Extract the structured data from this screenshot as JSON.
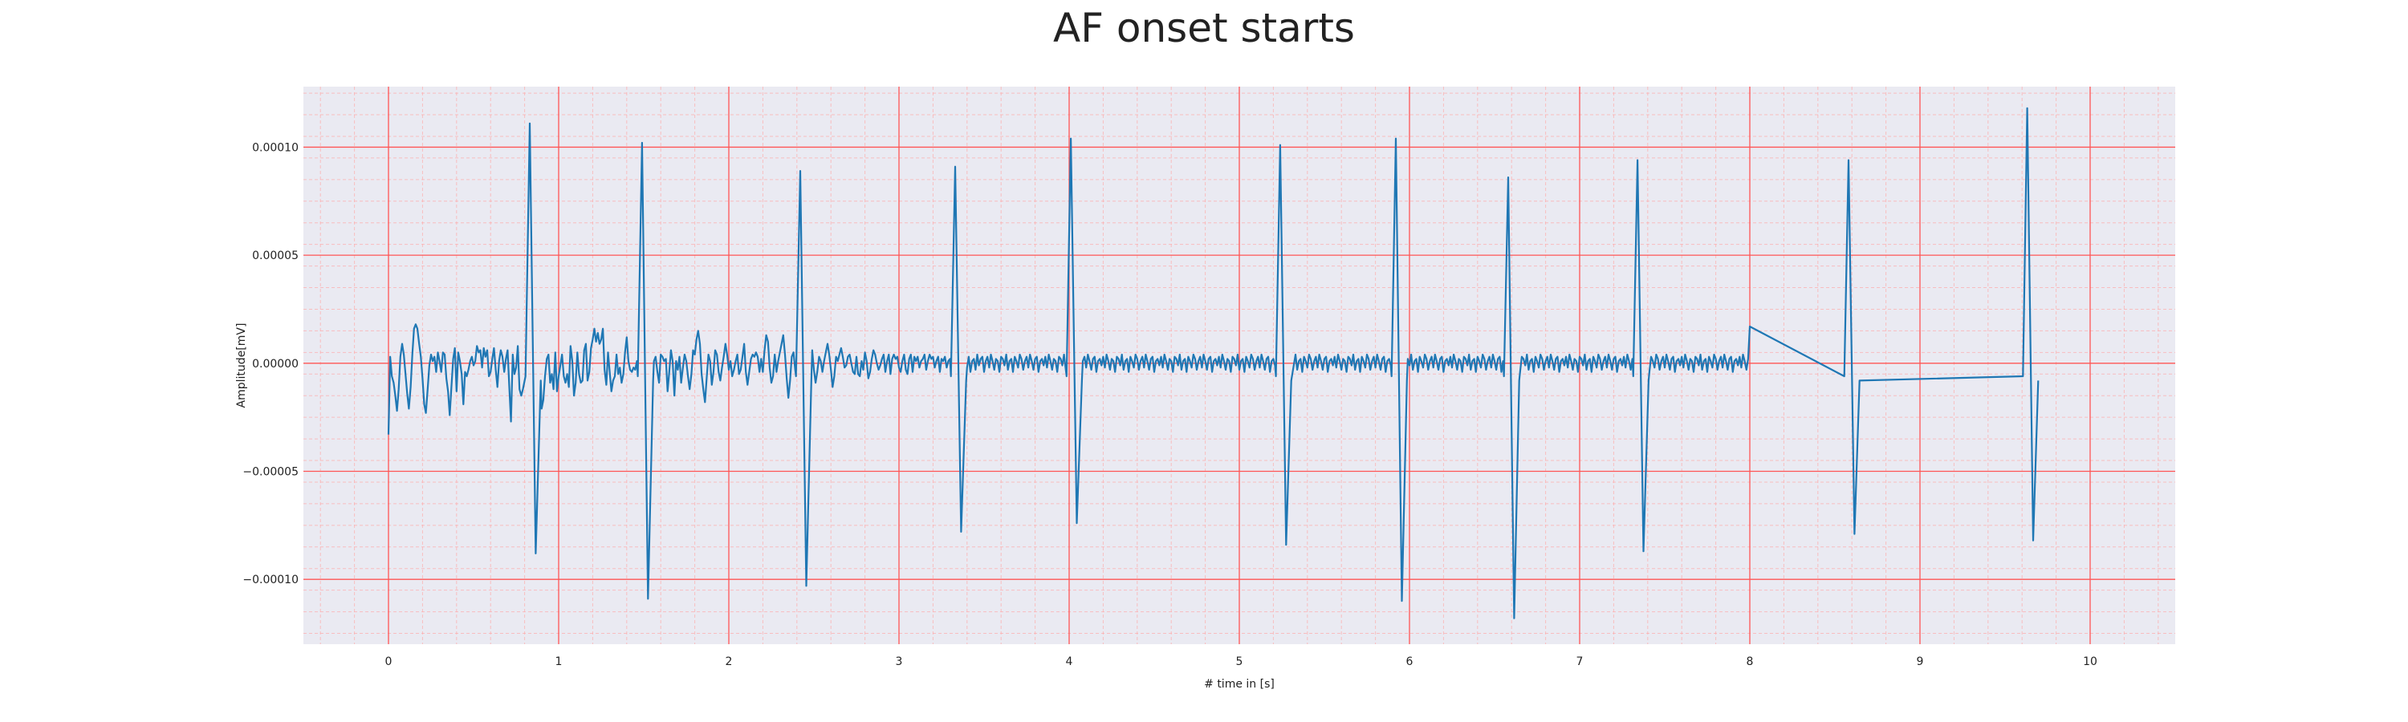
{
  "chart_data": {
    "type": "line",
    "title": "AF onset starts",
    "xlabel": "# time in [s]",
    "ylabel": "Amplitude[mV]",
    "xlim": [
      -0.5,
      10.5
    ],
    "ylim": [
      -0.00013,
      0.000128
    ],
    "x_ticks": [
      0,
      1,
      2,
      3,
      4,
      5,
      6,
      7,
      8,
      9,
      10
    ],
    "x_tick_labels": [
      "0",
      "1",
      "2",
      "3",
      "4",
      "5",
      "6",
      "7",
      "8",
      "9",
      "10"
    ],
    "y_ticks": [
      0.0001,
      5e-05,
      0.0,
      -5e-05,
      -0.0001
    ],
    "y_tick_labels": [
      "0.00010",
      "0.00005",
      "0.00000",
      "−0.00005",
      "−0.00010"
    ],
    "grid": {
      "major": true,
      "minor": true,
      "major_color": "#ff5555",
      "minor_color": "#ffaaaa"
    },
    "background_color": "#eaeaf2",
    "series": [
      {
        "color": "#1f77b4",
        "sample_rate_hz": 100,
        "beats": [
          {
            "t": 0.83,
            "peak": 0.000111,
            "trough": -8.8e-05
          },
          {
            "t": 1.49,
            "peak": 0.000102,
            "trough": -0.000109
          },
          {
            "t": 2.42,
            "peak": 8.9e-05,
            "trough": -0.000103
          },
          {
            "t": 3.33,
            "peak": 9.1e-05,
            "trough": -7.8e-05
          },
          {
            "t": 4.01,
            "peak": 0.000104,
            "trough": -7.4e-05
          },
          {
            "t": 5.24,
            "peak": 0.000101,
            "trough": -8.4e-05
          },
          {
            "t": 5.92,
            "peak": 0.000104,
            "trough": -0.00011
          },
          {
            "t": 6.58,
            "peak": 8.6e-05,
            "trough": -0.000118
          },
          {
            "t": 7.34,
            "peak": 9.4e-05,
            "trough": -8.7e-05
          },
          {
            "t": 8.58,
            "peak": 9.4e-05,
            "trough": -7.9e-05
          },
          {
            "t": 9.63,
            "peak": 0.000118,
            "trough": -8.2e-05
          }
        ],
        "values": [
          -3.3e-05,
          3e-06,
          -6e-06,
          -9e-06,
          -1.5e-05,
          -2.2e-05,
          -1.2e-05,
          3e-06,
          9e-06,
          4e-06,
          -5e-06,
          -1.4e-05,
          -2.1e-05,
          -1.1e-05,
          4e-06,
          1.6e-05,
          1.8e-05,
          1.6e-05,
          9e-06,
          3e-06,
          -7e-06,
          -1.9e-05,
          -2.3e-05,
          -1.2e-05,
          -1e-06,
          4e-06,
          1e-06,
          3e-06,
          -4e-06,
          5e-06,
          1e-06,
          -4e-06,
          5e-06,
          4e-06,
          -7e-06,
          -1.3e-05,
          -2.4e-05,
          -1.1e-05,
          2e-06,
          7e-06,
          -1.3e-05,
          5e-06,
          1e-06,
          -5e-06,
          -1.9e-05,
          -4e-06,
          -6e-06,
          -3e-06,
          1e-06,
          3e-06,
          -1e-06,
          1e-06,
          8e-06,
          5e-06,
          6e-06,
          -2e-06,
          7e-06,
          3e-06,
          6e-06,
          -6e-06,
          -4e-06,
          2e-06,
          7e-06,
          -3e-06,
          -1.1e-05,
          1e-06,
          6e-06,
          3e-06,
          -4e-06,
          2e-06,
          6e-06,
          -1.1e-05,
          -2.7e-05,
          4e-06,
          -5e-06,
          -2e-06,
          8e-06,
          -1.2e-05,
          -1.5e-05,
          -1.2e-05,
          6e-06,
          3e-06,
          -4e-06,
          1e-06,
          1.4e-05,
          2.5e-05,
          2.1e-05,
          9e-06,
          -2e-06,
          -1.4e-05,
          -2.1e-05,
          -1.7e-05,
          -6e-06,
          2e-06,
          4e-06,
          -9e-06,
          -5e-06,
          -1.2e-05,
          5e-06,
          -1.3e-05,
          -6e-06,
          -1e-06,
          4e-06,
          -6e-06,
          -9e-06,
          -5e-06,
          -1.1e-05,
          8e-06,
          1e-06,
          -1.5e-05,
          -9e-06,
          5e-06,
          -5e-06,
          -9e-06,
          -8e-06,
          6e-06,
          9e-06,
          -8e-06,
          -4e-06,
          7e-06,
          1.1e-05,
          1.6e-05,
          1e-05,
          1.4e-05,
          9e-06,
          1.1e-05,
          1.6e-05,
          -3e-06,
          -1e-05,
          5e-06,
          -4e-06,
          -1.3e-05,
          -8e-06,
          -6e-06,
          4e-06,
          -5e-06,
          -2e-06,
          -9e-06,
          -5e-06,
          5e-06,
          1.2e-05,
          1e-06,
          -3e-06,
          -4e-06,
          -2e-06,
          -3e-06,
          1e-06,
          -2e-06,
          -4e-06,
          0.0,
          -2e-06,
          2e-06,
          4e-06,
          6e-06,
          3e-06,
          -2e-06,
          1e-06,
          3e-06,
          -4e-06,
          -9e-06,
          4e-06,
          3e-06,
          1e-06,
          2e-06,
          -1.3e-05,
          -4e-06,
          6e-06,
          1e-06,
          -1.5e-05,
          1e-06,
          -3e-06,
          3e-06,
          -9e-06,
          -2e-06,
          4e-06,
          1e-06,
          -6e-06,
          -1.2e-05,
          -5e-06,
          6e-06,
          4e-06,
          1.1e-05,
          1.5e-05,
          9e-06,
          -5e-06,
          -1.2e-05,
          -1.8e-05,
          -7e-06,
          4e-06,
          1e-06,
          -1e-05,
          -4e-06,
          6e-06,
          4e-06,
          -4e-06,
          -8e-06,
          -2e-06,
          3e-06,
          9e-06,
          4e-06,
          -3e-06,
          1e-06,
          -6e-06,
          -3e-06,
          1e-06,
          4e-06,
          -5e-06,
          -3e-06,
          3e-06,
          9e-06,
          -4e-06,
          -1e-05,
          -4e-06,
          2e-06,
          4e-06,
          3e-06,
          5e-06,
          3e-06,
          -4e-06,
          2e-06,
          -4e-06,
          6e-06,
          1.3e-05,
          1e-05,
          -2e-06,
          -9e-06,
          -6e-06,
          4e-06,
          -4e-06,
          1e-06,
          5e-06,
          9e-06,
          1.3e-05,
          4e-06,
          -7e-06,
          -1.6e-05,
          -8e-06,
          3e-06,
          5e-06,
          -3e-06,
          -9e-06,
          -5e-06,
          1e-06,
          3e-06,
          1e-06,
          -3e-06,
          -5e-06,
          -4e-06,
          1e-06,
          6e-06,
          -3e-06,
          -9e-06,
          -4e-06,
          3e-06,
          1e-06,
          -4e-06,
          1e-06,
          5e-06,
          9e-06,
          4e-06,
          -3e-06,
          -1.1e-05,
          -6e-06,
          3e-06,
          1e-06,
          4e-06,
          7e-06,
          3e-06,
          -2e-06,
          -1e-06,
          3e-06,
          4e-06,
          0.0,
          -4e-06,
          -5e-06,
          3e-06,
          -5e-06,
          -6e-06,
          1e-06,
          -3e-06,
          5e-06,
          1e-06,
          -7e-06,
          -4e-06,
          2e-06,
          6e-06,
          4e-06,
          0.0,
          -3e-06,
          -1e-06,
          2e-06,
          4e-06,
          -4e-06,
          1e-06,
          4e-06,
          -5e-06,
          2e-06,
          4e-06,
          2e-06,
          3e-06,
          -2e-06,
          -4e-06,
          1e-06,
          4e-06,
          -3e-06,
          -5e-06,
          2e-06,
          4e-06,
          -4e-06,
          3e-06,
          1e-06,
          3e-06,
          -2e-06,
          1e-06,
          2e-06,
          4e-06,
          -3e-06,
          1e-06,
          4e-06,
          2e-06,
          3e-06,
          -2e-06,
          1e-06,
          3e-06,
          -4e-06,
          2e-06,
          1e-06,
          3e-06,
          -2e-06,
          1e-06,
          2e-06,
          -3e-06,
          4e-06,
          1e-06,
          -2e-06,
          3e-06,
          2e-06,
          -3e-06,
          1e-06,
          4e-06,
          -2e-06,
          3e-06,
          -4e-06,
          1e-06,
          2e-06,
          -3e-06,
          4e-06,
          -1e-06,
          2e-06,
          3e-06,
          -4e-06,
          1e-06,
          3e-06,
          -2e-06,
          4e-06,
          1e-06,
          -3e-06,
          2e-06,
          1e-06,
          -4e-06,
          3e-06,
          2e-06,
          -1e-06,
          4e-06,
          -3e-06,
          1e-06,
          2e-06,
          -4e-06,
          3e-06,
          1e-06,
          -2e-06,
          4e-06,
          2e-06,
          -3e-06,
          1e-06,
          3e-06,
          -2e-06,
          4e-06,
          1e-06,
          -3e-06,
          2e-06,
          3e-06,
          -4e-06,
          1e-06,
          2e-06,
          -1e-06,
          3e-06,
          -2e-06,
          4e-06,
          1e-06,
          -3e-06,
          2e-06,
          1e-06,
          -4e-06,
          3e-06,
          2e-06,
          -1e-06,
          4e-06,
          -3e-06,
          1e-06,
          2e-06,
          -4e-06,
          3e-06,
          1e-06,
          -2e-06,
          4e-06,
          2e-06,
          -3e-06,
          1e-06,
          3e-06,
          -2e-06,
          4e-06,
          1e-06,
          -3e-06,
          2e-06,
          3e-06,
          -4e-06,
          1e-06,
          2e-06,
          -1e-06,
          3e-06,
          -2e-06,
          4e-06,
          1e-06,
          -3e-06,
          2e-06,
          1e-06,
          -4e-06,
          3e-06,
          2e-06,
          -1e-06,
          4e-06,
          -3e-06,
          1e-06,
          2e-06,
          -4e-06,
          3e-06,
          1e-06,
          -2e-06,
          4e-06,
          2e-06,
          -3e-06,
          1e-06,
          3e-06,
          -2e-06,
          4e-06,
          1e-06,
          -3e-06,
          2e-06,
          3e-06,
          -4e-06,
          1e-06,
          2e-06,
          -1e-06,
          3e-06,
          -2e-06,
          4e-06,
          1e-06,
          -3e-06,
          2e-06,
          1e-06,
          -4e-06,
          3e-06,
          2e-06,
          -1e-06,
          4e-06,
          -3e-06,
          1e-06,
          2e-06,
          -4e-06,
          3e-06,
          1e-06,
          -2e-06,
          4e-06,
          2e-06,
          -3e-06,
          1e-06,
          3e-06,
          -2e-06,
          4e-06,
          1e-06,
          -3e-06,
          2e-06,
          3e-06,
          -4e-06,
          1e-06,
          2e-06,
          -1e-06,
          3e-06,
          -2e-06,
          4e-06,
          1e-06,
          -3e-06,
          2e-06,
          1e-06,
          -4e-06,
          3e-06,
          2e-06,
          -1e-06,
          4e-06,
          -3e-06,
          1e-06,
          2e-06,
          -4e-06,
          3e-06,
          1e-06,
          -2e-06,
          4e-06,
          2e-06,
          -3e-06,
          1e-06,
          3e-06,
          -2e-06,
          4e-06,
          1e-06,
          -3e-06,
          2e-06,
          3e-06,
          -4e-06,
          1e-06,
          2e-06,
          -1e-06,
          3e-06,
          -2e-06,
          4e-06,
          1e-06,
          -3e-06,
          2e-06,
          1e-06,
          -4e-06,
          3e-06,
          2e-06,
          -1e-06,
          4e-06,
          -3e-06,
          1e-06,
          2e-06,
          -4e-06,
          3e-06,
          1e-06,
          -2e-06,
          4e-06,
          2e-06,
          -3e-06,
          1e-06,
          3e-06,
          -2e-06,
          4e-06,
          1e-06,
          -3e-06,
          2e-06,
          3e-06,
          -4e-06,
          1e-06,
          2e-06,
          -1e-06,
          3e-06,
          -2e-06,
          4e-06,
          1e-06,
          -3e-06,
          2e-06,
          1e-06,
          -4e-06,
          3e-06,
          2e-06,
          -1e-06,
          4e-06,
          -3e-06,
          1e-06,
          2e-06,
          -4e-06,
          3e-06,
          1e-06,
          -2e-06,
          4e-06,
          2e-06,
          -3e-06,
          1e-06,
          3e-06,
          -2e-06,
          4e-06,
          1e-06,
          -3e-06,
          2e-06,
          3e-06,
          -4e-06,
          1e-06,
          2e-06,
          -1e-06,
          3e-06,
          -2e-06,
          4e-06,
          1e-06,
          -3e-06,
          2e-06,
          1e-06,
          -4e-06,
          3e-06,
          2e-06,
          -1e-06,
          4e-06,
          -3e-06,
          1e-06,
          2e-06,
          -4e-06,
          3e-06,
          1e-06,
          -2e-06,
          4e-06,
          2e-06,
          -3e-06,
          1e-06,
          3e-06,
          -2e-06,
          4e-06,
          1e-06,
          -3e-06,
          2e-06,
          3e-06,
          -4e-06,
          1e-06,
          2e-06,
          -1e-06,
          3e-06,
          -2e-06,
          4e-06,
          1e-06,
          -3e-06,
          2e-06,
          1e-06,
          -4e-06,
          3e-06,
          2e-06,
          -1e-06,
          4e-06,
          -3e-06,
          1e-06,
          2e-06,
          -4e-06,
          3e-06,
          1e-06,
          -2e-06,
          4e-06,
          2e-06,
          -3e-06,
          1e-06,
          3e-06,
          -2e-06,
          4e-06,
          1e-06,
          -3e-06,
          2e-06,
          3e-06,
          -4e-06,
          1e-06,
          2e-06,
          -1e-06,
          3e-06,
          -2e-06,
          4e-06,
          1e-06,
          -3e-06,
          2e-06,
          1e-06,
          -4e-06,
          3e-06,
          2e-06,
          -1e-06,
          4e-06,
          -3e-06,
          1e-06,
          2e-06,
          -4e-06,
          3e-06,
          1e-06,
          -2e-06,
          4e-06,
          2e-06,
          -3e-06,
          1e-06,
          3e-06,
          -2e-06,
          4e-06,
          1e-06,
          -3e-06,
          2e-06,
          3e-06,
          -4e-06,
          1e-06,
          2e-06,
          -1e-06,
          3e-06,
          -2e-06,
          4e-06,
          1e-06,
          -3e-06,
          2e-06,
          1e-06,
          -4e-06,
          3e-06,
          2e-06,
          -1e-06,
          4e-06,
          -3e-06,
          1e-06,
          2e-06,
          -4e-06,
          3e-06,
          1e-06,
          -2e-06,
          4e-06,
          2e-06,
          -3e-06,
          1e-06,
          3e-06,
          -2e-06,
          4e-06,
          1e-06,
          -3e-06,
          2e-06,
          3e-06,
          -4e-06,
          1e-06,
          2e-06,
          -1e-06,
          3e-06,
          -2e-06,
          4e-06,
          1e-06,
          -3e-06,
          2e-06,
          1e-06,
          -4e-06,
          3e-06,
          2e-06,
          -1e-06,
          4e-06,
          -3e-06,
          1e-06,
          2e-06,
          -4e-06,
          3e-06,
          1e-06,
          -2e-06,
          4e-06,
          2e-06,
          -3e-06,
          1e-06,
          3e-06,
          -2e-06,
          4e-06,
          1e-06,
          -3e-06,
          2e-06,
          3e-06,
          -4e-06,
          1e-06,
          2e-06,
          -1e-06,
          3e-06,
          -2e-06,
          4e-06,
          1e-06,
          -3e-06,
          2e-06,
          1e-06,
          -4e-06,
          3e-06,
          2e-06,
          -1e-06,
          4e-06,
          -3e-06,
          1e-06,
          2e-06,
          -4e-06,
          3e-06,
          1e-06,
          -2e-06,
          4e-06,
          2e-06,
          -3e-06,
          1e-06,
          3e-06,
          -2e-06,
          4e-06,
          1e-06,
          -3e-06,
          2e-06,
          3e-06,
          -4e-06,
          1e-06,
          2e-06,
          -1e-06,
          3e-06,
          -2e-06,
          4e-06,
          1e-06,
          -3e-06,
          2e-06,
          1.7e-05
        ]
      }
    ]
  }
}
